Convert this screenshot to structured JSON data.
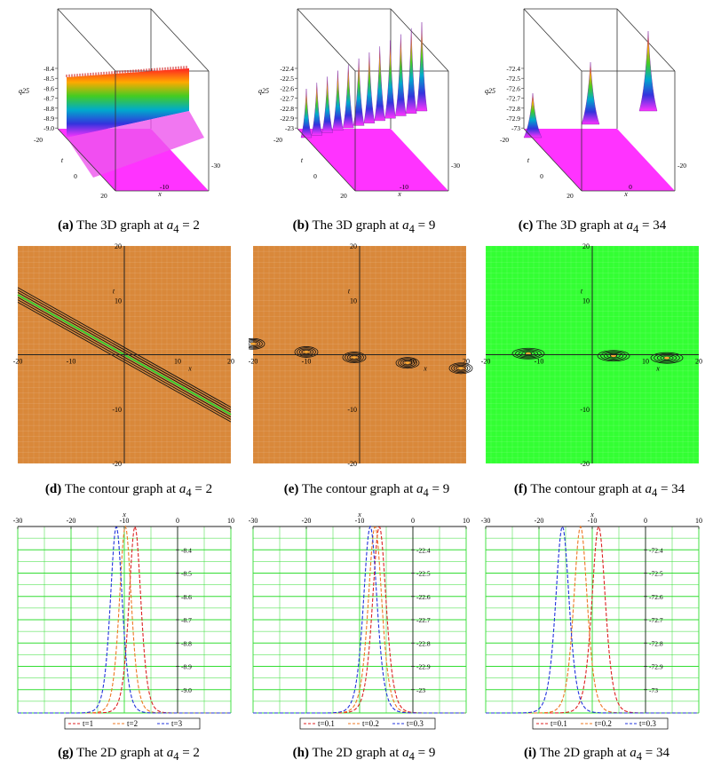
{
  "colors": {
    "magenta": "#ff33ff",
    "orange": "#d9883a",
    "green_bg": "#33ff33",
    "grid_green": "#33dd33",
    "red": "#dd2222",
    "darkorange": "#ee7722",
    "blue": "#2233dd",
    "dark": "#111111"
  },
  "captions": [
    {
      "letter": "(a)",
      "text": "The 3D graph at",
      "param": "a",
      "sub": "4",
      "value": "= 2"
    },
    {
      "letter": "(b)",
      "text": "The 3D graph at",
      "param": "a",
      "sub": "4",
      "value": "= 9"
    },
    {
      "letter": "(c)",
      "text": "The 3D graph at",
      "param": "a",
      "sub": "4",
      "value": "= 34"
    },
    {
      "letter": "(d)",
      "text": "The contour graph at",
      "param": "a",
      "sub": "4",
      "value": "= 2"
    },
    {
      "letter": "(e)",
      "text": "The contour graph at",
      "param": "a",
      "sub": "4",
      "value": "= 9"
    },
    {
      "letter": "(f)",
      "text": "The contour graph at",
      "param": "a",
      "sub": "4",
      "value": "= 34"
    },
    {
      "letter": "(g)",
      "text": "The 2D graph at",
      "param": "a",
      "sub": "4",
      "value": "= 2"
    },
    {
      "letter": "(h)",
      "text": "The 2D graph at",
      "param": "a",
      "sub": "4",
      "value": "= 9"
    },
    {
      "letter": "(i)",
      "text": "The 2D graph at",
      "param": "a",
      "sub": "4",
      "value": "= 34"
    }
  ],
  "chart_data": [
    {
      "type": "surface3d",
      "id": "a",
      "zlabel": "q25",
      "xlabel": "x",
      "ylabel": "t",
      "z_ticks": [
        "-8.4",
        "-8.5",
        "-8.6",
        "-8.7",
        "-8.8",
        "-8.9",
        "-9.0"
      ],
      "t_ticks": [
        "-20",
        "0",
        "20"
      ],
      "x_ticks": [
        "-30",
        "-10"
      ],
      "shape": "ridge",
      "peaks": 1
    },
    {
      "type": "surface3d",
      "id": "b",
      "zlabel": "q25",
      "xlabel": "x",
      "ylabel": "t",
      "z_ticks": [
        "-22.4",
        "-22.5",
        "-22.6",
        "-22.7",
        "-22.8",
        "-22.9",
        "-23"
      ],
      "t_ticks": [
        "-20",
        "0",
        "20"
      ],
      "x_ticks": [
        "-30",
        "-10"
      ],
      "shape": "peaks",
      "peaks": 12
    },
    {
      "type": "surface3d",
      "id": "c",
      "zlabel": "q25",
      "xlabel": "x",
      "ylabel": "t",
      "z_ticks": [
        "-72.4",
        "-72.5",
        "-72.6",
        "-72.7",
        "-72.8",
        "-72.9",
        "-73"
      ],
      "t_ticks": [
        "-20",
        "0",
        "20"
      ],
      "x_ticks": [
        "-20",
        "0"
      ],
      "shape": "peaks",
      "peaks": 3
    },
    {
      "type": "contour",
      "id": "d",
      "xlim": [
        -20,
        20
      ],
      "ylim": [
        -20,
        20
      ],
      "x_ticks": [
        "-20",
        "-10",
        "10",
        "20"
      ],
      "y_ticks": [
        "20",
        "10",
        "-10",
        "-20"
      ],
      "xlabel": "x",
      "ylabel": "t",
      "background": "orange",
      "feature": "diagonal-band",
      "slope": -0.55
    },
    {
      "type": "contour",
      "id": "e",
      "xlim": [
        -20,
        20
      ],
      "ylim": [
        -20,
        20
      ],
      "x_ticks": [
        "-20",
        "-10",
        "10",
        "20"
      ],
      "y_ticks": [
        "20",
        "10",
        "-10",
        "-20"
      ],
      "xlabel": "x",
      "ylabel": "t",
      "background": "orange",
      "feature": "blobs",
      "blobs": [
        [
          -20,
          2
        ],
        [
          -10,
          0.5
        ],
        [
          -1,
          -0.5
        ],
        [
          9,
          -1.5
        ],
        [
          19,
          -2.5
        ]
      ]
    },
    {
      "type": "contour",
      "id": "f",
      "xlim": [
        -20,
        20
      ],
      "ylim": [
        -20,
        20
      ],
      "x_ticks": [
        "-20",
        "-10",
        "10",
        "20"
      ],
      "y_ticks": [
        "20",
        "10",
        "-10",
        "-20"
      ],
      "xlabel": "x",
      "ylabel": "t",
      "background": "green",
      "feature": "blobs",
      "blobs": [
        [
          -12,
          0.2
        ],
        [
          4,
          -0.2
        ],
        [
          14,
          -0.6
        ]
      ]
    },
    {
      "type": "line",
      "id": "g",
      "xlabel": "x",
      "xlim": [
        -30,
        10
      ],
      "x_ticks": [
        "-30",
        "-20",
        "-10",
        "0",
        "10"
      ],
      "y_ticks": [
        "-8.4",
        "-8.5",
        "-8.6",
        "-8.7",
        "-8.8",
        "-8.9",
        "-9.0"
      ],
      "ylim": [
        -9.1,
        -8.3
      ],
      "baseline": -9.1,
      "peak": -8.3,
      "series": [
        {
          "name": "t=1",
          "color": "red",
          "center": -8,
          "width": 1.5
        },
        {
          "name": "t=2",
          "color": "darkorange",
          "center": -9.8,
          "width": 1.5
        },
        {
          "name": "t=3",
          "color": "blue",
          "center": -11.5,
          "width": 1.5
        }
      ]
    },
    {
      "type": "line",
      "id": "h",
      "xlabel": "x",
      "xlim": [
        -30,
        10
      ],
      "x_ticks": [
        "-30",
        "-20",
        "-10",
        "0",
        "10"
      ],
      "y_ticks": [
        "-22.4",
        "-22.5",
        "-22.6",
        "-22.7",
        "-22.8",
        "-22.9",
        "-23"
      ],
      "ylim": [
        -23.1,
        -22.3
      ],
      "baseline": -23.1,
      "peak": -22.3,
      "series": [
        {
          "name": "t=0.1",
          "color": "red",
          "center": -6.3,
          "width": 1.7
        },
        {
          "name": "t=0.2",
          "color": "darkorange",
          "center": -7.1,
          "width": 1.7
        },
        {
          "name": "t=0.3",
          "color": "blue",
          "center": -8.0,
          "width": 1.7
        }
      ]
    },
    {
      "type": "line",
      "id": "i",
      "xlabel": "x",
      "xlim": [
        -30,
        10
      ],
      "x_ticks": [
        "-30",
        "-20",
        "-10",
        "0",
        "10"
      ],
      "y_ticks": [
        "-72.4",
        "-72.5",
        "-72.6",
        "-72.7",
        "-72.8",
        "-72.9",
        "-73"
      ],
      "ylim": [
        -73.1,
        -72.3
      ],
      "baseline": -73.1,
      "peak": -72.3,
      "series": [
        {
          "name": "t=0.1",
          "color": "red",
          "center": -8.8,
          "width": 1.7
        },
        {
          "name": "t=0.2",
          "color": "darkorange",
          "center": -12.2,
          "width": 1.7
        },
        {
          "name": "t=0.3",
          "color": "blue",
          "center": -15.6,
          "width": 1.7
        }
      ]
    }
  ]
}
